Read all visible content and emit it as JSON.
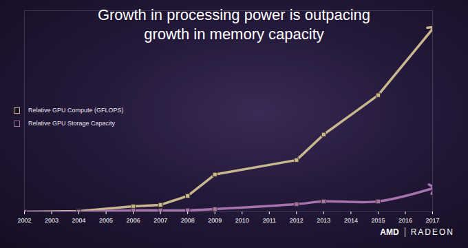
{
  "chart_data": {
    "type": "line",
    "title": "Growth in processing power is outpacing\ngrowth in memory capacity",
    "annotations": [
      "AMD",
      "RADEON"
    ],
    "x": [
      2002,
      2004,
      2006,
      2007,
      2008,
      2009,
      2012,
      2013,
      2015,
      2017
    ],
    "series": [
      {
        "name": "Relative GPU Compute (GFLOPS)",
        "color": "#c9b88f",
        "marker": "square",
        "line_style": "solid",
        "values": [
          0,
          0.4,
          3,
          3.8,
          8.7,
          20.4,
          28.3,
          42.3,
          63.8,
          100
        ]
      },
      {
        "name": "Relative GPU Storage Capacity",
        "color": "#a673ae",
        "marker": "square",
        "line_style": "smooth",
        "values": [
          0,
          0,
          0.8,
          0.8,
          0.8,
          1.5,
          4.2,
          5.7,
          5.7,
          12.8
        ]
      }
    ],
    "xlim": [
      2002,
      2017
    ],
    "xticks": [
      2002,
      2003,
      2004,
      2005,
      2006,
      2007,
      2008,
      2009,
      2010,
      2011,
      2012,
      2013,
      2014,
      2015,
      2016,
      2017
    ],
    "ylim": [
      0,
      110
    ],
    "tick_labels": "x",
    "grid": false,
    "legend": "left"
  }
}
